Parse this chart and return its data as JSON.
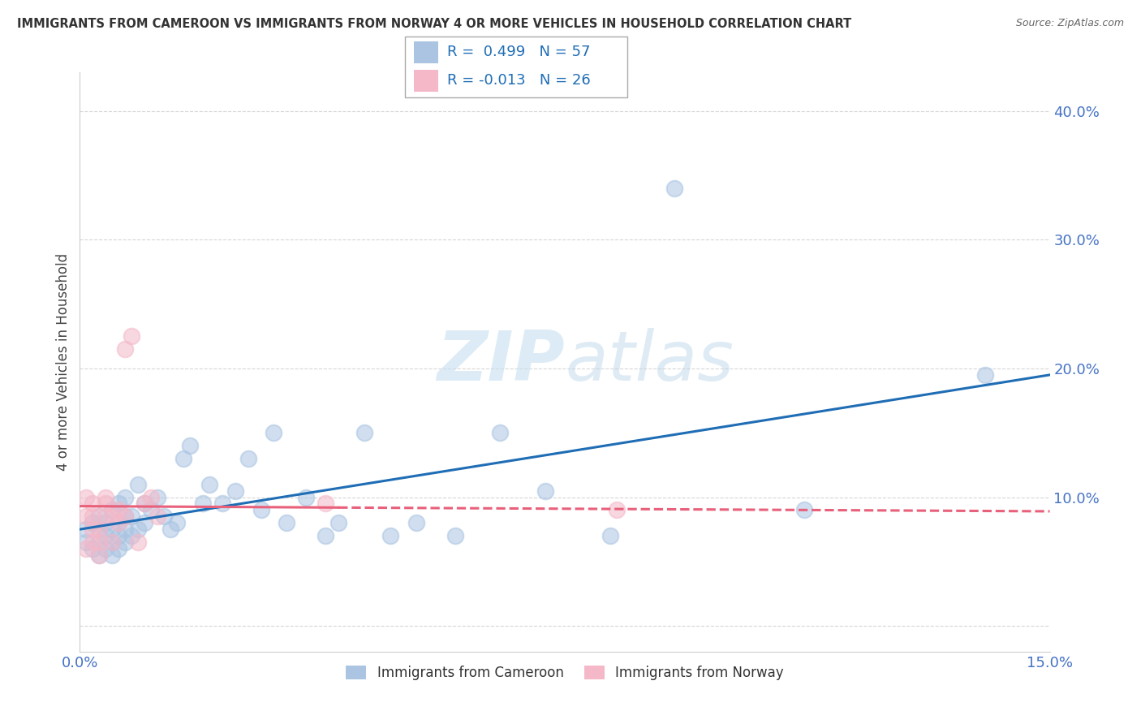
{
  "title": "IMMIGRANTS FROM CAMEROON VS IMMIGRANTS FROM NORWAY 4 OR MORE VEHICLES IN HOUSEHOLD CORRELATION CHART",
  "source": "Source: ZipAtlas.com",
  "ylabel": "4 or more Vehicles in Household",
  "xmin": 0.0,
  "xmax": 0.15,
  "ymin": -0.02,
  "ymax": 0.43,
  "cameroon_color": "#aac4e2",
  "norway_color": "#f4b8c8",
  "cameroon_line_color": "#1f6db5",
  "norway_line_color": "#e8607a",
  "norway_line_style": "-",
  "norway_dash_style": "--",
  "R_cameroon": 0.499,
  "N_cameroon": 57,
  "R_norway": -0.013,
  "N_norway": 26,
  "legend_cameroon": "Immigrants from Cameroon",
  "legend_norway": "Immigrants from Norway",
  "watermark_ZIP": "ZIP",
  "watermark_atlas": "atlas",
  "cam_line_x0": 0.0,
  "cam_line_y0": 0.075,
  "cam_line_x1": 0.15,
  "cam_line_y1": 0.195,
  "nor_line_x0": 0.0,
  "nor_line_y0": 0.093,
  "nor_line_x1": 0.15,
  "nor_line_y1": 0.089,
  "cameroon_x": [
    0.001,
    0.001,
    0.002,
    0.002,
    0.003,
    0.003,
    0.003,
    0.003,
    0.004,
    0.004,
    0.004,
    0.005,
    0.005,
    0.005,
    0.005,
    0.006,
    0.006,
    0.006,
    0.006,
    0.007,
    0.007,
    0.007,
    0.007,
    0.008,
    0.008,
    0.009,
    0.009,
    0.01,
    0.01,
    0.011,
    0.012,
    0.013,
    0.014,
    0.015,
    0.016,
    0.017,
    0.019,
    0.02,
    0.022,
    0.024,
    0.026,
    0.028,
    0.03,
    0.032,
    0.035,
    0.038,
    0.04,
    0.044,
    0.048,
    0.052,
    0.058,
    0.065,
    0.072,
    0.082,
    0.092,
    0.112,
    0.14
  ],
  "cameroon_y": [
    0.065,
    0.075,
    0.06,
    0.08,
    0.055,
    0.065,
    0.075,
    0.085,
    0.06,
    0.07,
    0.08,
    0.055,
    0.065,
    0.075,
    0.09,
    0.06,
    0.07,
    0.08,
    0.095,
    0.065,
    0.075,
    0.085,
    0.1,
    0.07,
    0.085,
    0.075,
    0.11,
    0.095,
    0.08,
    0.09,
    0.1,
    0.085,
    0.075,
    0.08,
    0.13,
    0.14,
    0.095,
    0.11,
    0.095,
    0.105,
    0.13,
    0.09,
    0.15,
    0.08,
    0.1,
    0.07,
    0.08,
    0.15,
    0.07,
    0.08,
    0.07,
    0.15,
    0.105,
    0.07,
    0.34,
    0.09,
    0.195
  ],
  "norway_x": [
    0.001,
    0.001,
    0.001,
    0.002,
    0.002,
    0.002,
    0.002,
    0.003,
    0.003,
    0.003,
    0.004,
    0.004,
    0.004,
    0.005,
    0.005,
    0.006,
    0.006,
    0.007,
    0.007,
    0.008,
    0.009,
    0.01,
    0.011,
    0.012,
    0.038,
    0.083
  ],
  "norway_y": [
    0.06,
    0.085,
    0.1,
    0.065,
    0.075,
    0.085,
    0.095,
    0.055,
    0.065,
    0.075,
    0.085,
    0.095,
    0.1,
    0.065,
    0.085,
    0.08,
    0.09,
    0.085,
    0.215,
    0.225,
    0.065,
    0.095,
    0.1,
    0.085,
    0.095,
    0.09
  ]
}
